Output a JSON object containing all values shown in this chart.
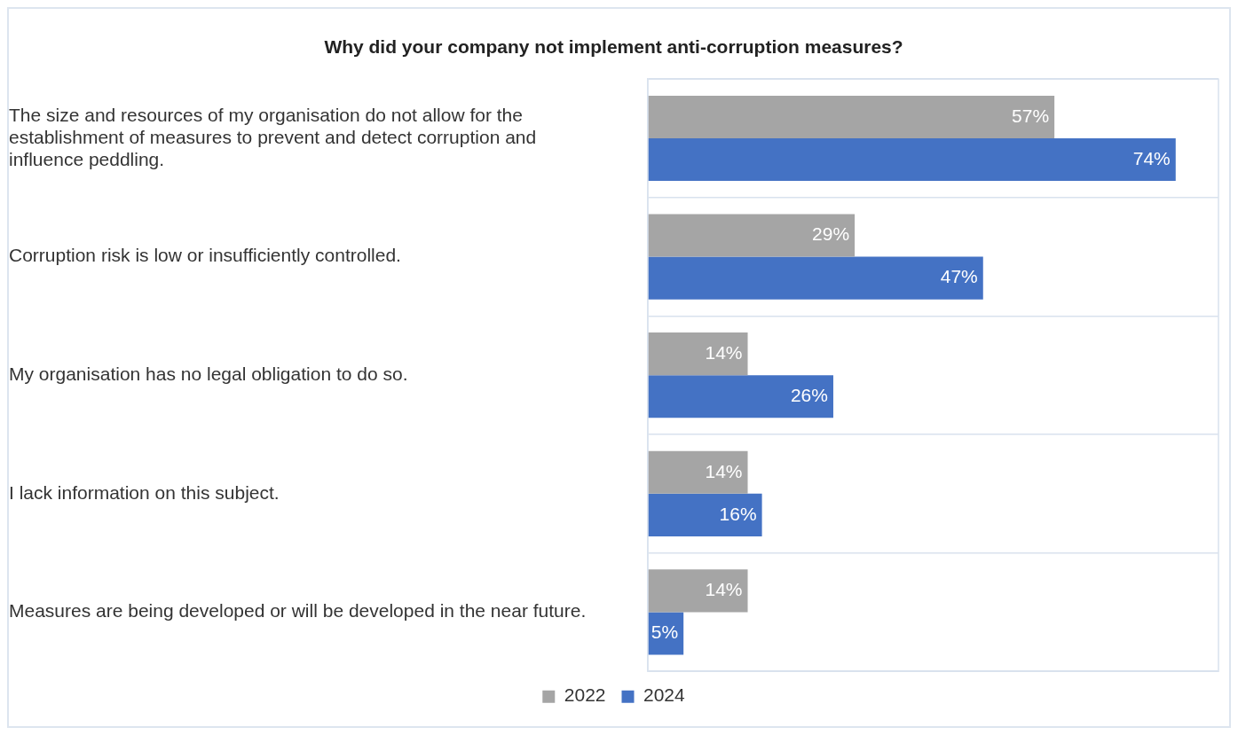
{
  "chart_data": {
    "type": "bar",
    "orientation": "horizontal",
    "title": "Why did your company not implement anti-corruption measures?",
    "categories": [
      "The size and resources of my organisation do not allow for the establishment of measures to prevent and detect corruption and influence peddling.",
      "Corruption risk is low or insufficiently controlled.",
      "My organisation has no legal obligation to do so.",
      "I lack information on this subject.",
      "Measures are being developed or will be developed in the near future."
    ],
    "series": [
      {
        "name": "2022",
        "color": "#a5a5a5",
        "values": [
          57,
          29,
          14,
          14,
          14
        ],
        "value_labels": [
          "57%",
          "29%",
          "14%",
          "14%",
          "14%"
        ]
      },
      {
        "name": "2024",
        "color": "#4472c4",
        "values": [
          74,
          47,
          26,
          16,
          5
        ],
        "value_labels": [
          "74%",
          "47%",
          "26%",
          "16%",
          "5%"
        ]
      }
    ],
    "xlim": [
      0,
      80
    ],
    "tick_labels": "y",
    "grid": "y",
    "legend": "bottom"
  }
}
